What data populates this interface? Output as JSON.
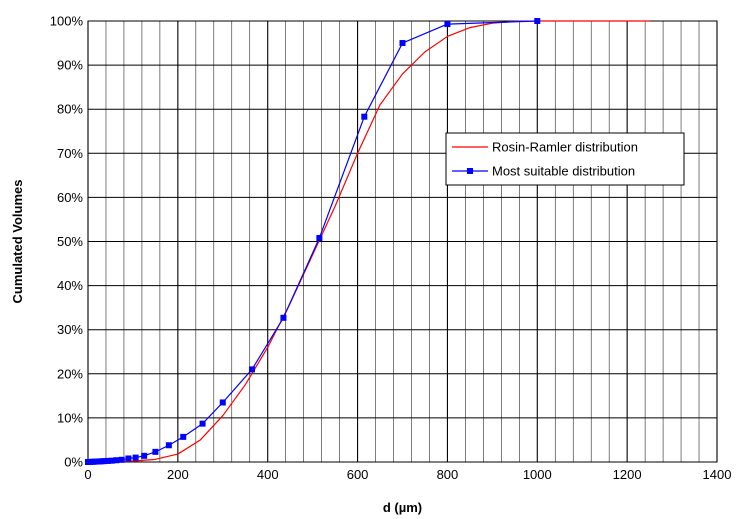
{
  "chart_data": {
    "type": "line",
    "title": "",
    "xlabel": "d (µm)",
    "ylabel": "Cumulated Volumes",
    "xlim": [
      0,
      1400
    ],
    "ylim": [
      0,
      100
    ],
    "x_ticks": [
      0,
      200,
      400,
      600,
      800,
      1000,
      1200,
      1400
    ],
    "x_tick_labels": [
      "0",
      "200",
      "400",
      "600",
      "800",
      "1000",
      "1200",
      "1400"
    ],
    "y_ticks": [
      0,
      10,
      20,
      30,
      40,
      50,
      60,
      70,
      80,
      90,
      100
    ],
    "y_tick_labels": [
      "0%",
      "10%",
      "20%",
      "30%",
      "40%",
      "50%",
      "60%",
      "70%",
      "80%",
      "90%",
      "100%"
    ],
    "grid": "major and minor",
    "legend_position": "right",
    "series": [
      {
        "name": "Rosin-Ramler distribution",
        "color": "#ff0000",
        "marker": "none",
        "points": [
          [
            0,
            0
          ],
          [
            50,
            0.05
          ],
          [
            100,
            0.2
          ],
          [
            150,
            0.6
          ],
          [
            200,
            1.8
          ],
          [
            250,
            5
          ],
          [
            300,
            10.5
          ],
          [
            350,
            17.5
          ],
          [
            400,
            26
          ],
          [
            450,
            36
          ],
          [
            500,
            47
          ],
          [
            550,
            58
          ],
          [
            600,
            70
          ],
          [
            650,
            81
          ],
          [
            700,
            88
          ],
          [
            750,
            93
          ],
          [
            800,
            96.5
          ],
          [
            850,
            98.5
          ],
          [
            900,
            99.5
          ],
          [
            950,
            99.9
          ],
          [
            1000,
            100
          ],
          [
            1250,
            100
          ]
        ]
      },
      {
        "name": "Most suitable distribution",
        "color": "#0000ff",
        "marker": "square",
        "points": [
          [
            0,
            0
          ],
          [
            5,
            0.02
          ],
          [
            10,
            0.05
          ],
          [
            15,
            0.08
          ],
          [
            20,
            0.1
          ],
          [
            25,
            0.12
          ],
          [
            30,
            0.15
          ],
          [
            36,
            0.2
          ],
          [
            44,
            0.25
          ],
          [
            53,
            0.3
          ],
          [
            63,
            0.4
          ],
          [
            75,
            0.5
          ],
          [
            90,
            0.8
          ],
          [
            106,
            1.0
          ],
          [
            125,
            1.4
          ],
          [
            150,
            2.3
          ],
          [
            180,
            3.8
          ],
          [
            212,
            5.7
          ],
          [
            255,
            8.7
          ],
          [
            300,
            13.5
          ],
          [
            365,
            21
          ],
          [
            435,
            32.7
          ],
          [
            515,
            50.8
          ],
          [
            615,
            78.3
          ],
          [
            700,
            95
          ],
          [
            800,
            99.3
          ],
          [
            1000,
            100
          ]
        ]
      }
    ]
  }
}
